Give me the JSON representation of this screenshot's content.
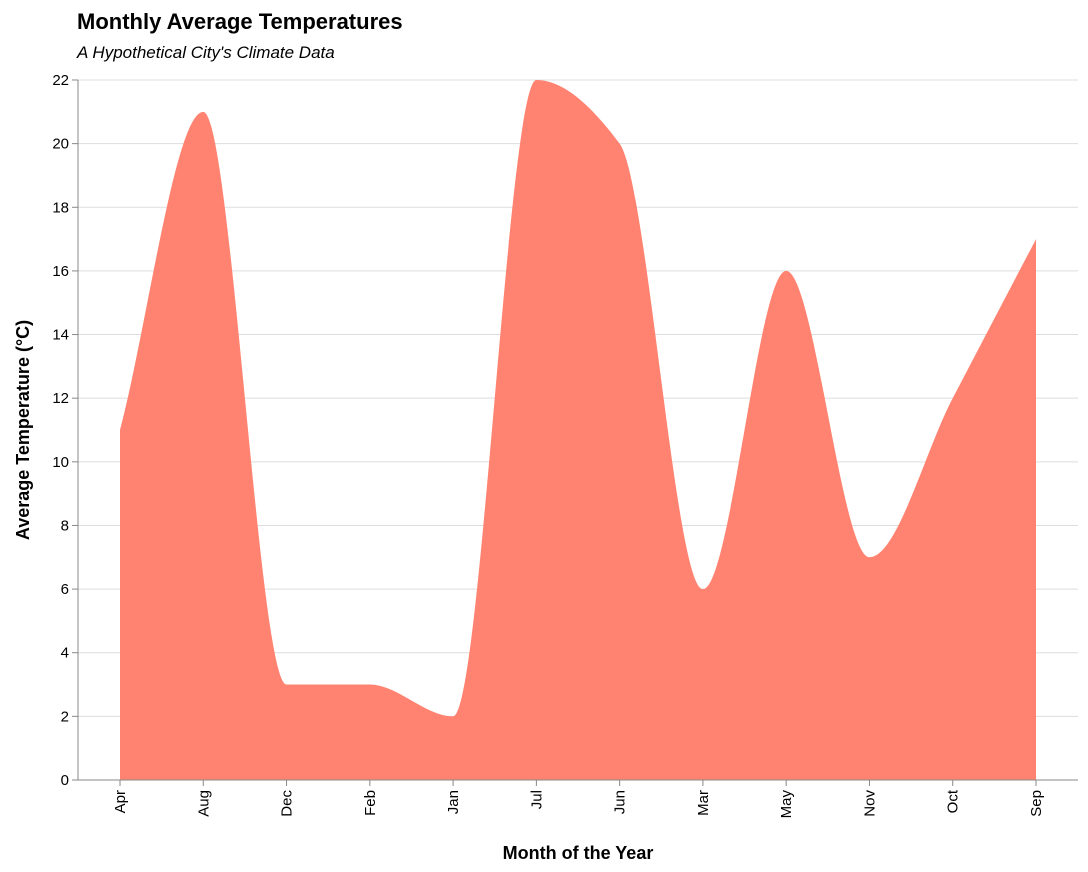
{
  "chart_data": {
    "type": "area",
    "title": "Monthly Average Temperatures",
    "subtitle": "A Hypothetical City's Climate Data",
    "xlabel": "Month of the Year",
    "ylabel": "Average Temperature (°C)",
    "categories": [
      "Apr",
      "Aug",
      "Dec",
      "Feb",
      "Jan",
      "Jul",
      "Jun",
      "Mar",
      "May",
      "Nov",
      "Oct",
      "Sep"
    ],
    "values": [
      11,
      21,
      3,
      3,
      2,
      22,
      20,
      6,
      16,
      7,
      12,
      17
    ],
    "ylim": [
      0,
      22
    ],
    "yticks": [
      0,
      2,
      4,
      6,
      8,
      10,
      12,
      14,
      16,
      18,
      20,
      22
    ],
    "grid": true,
    "color": "#ff7f6b"
  }
}
